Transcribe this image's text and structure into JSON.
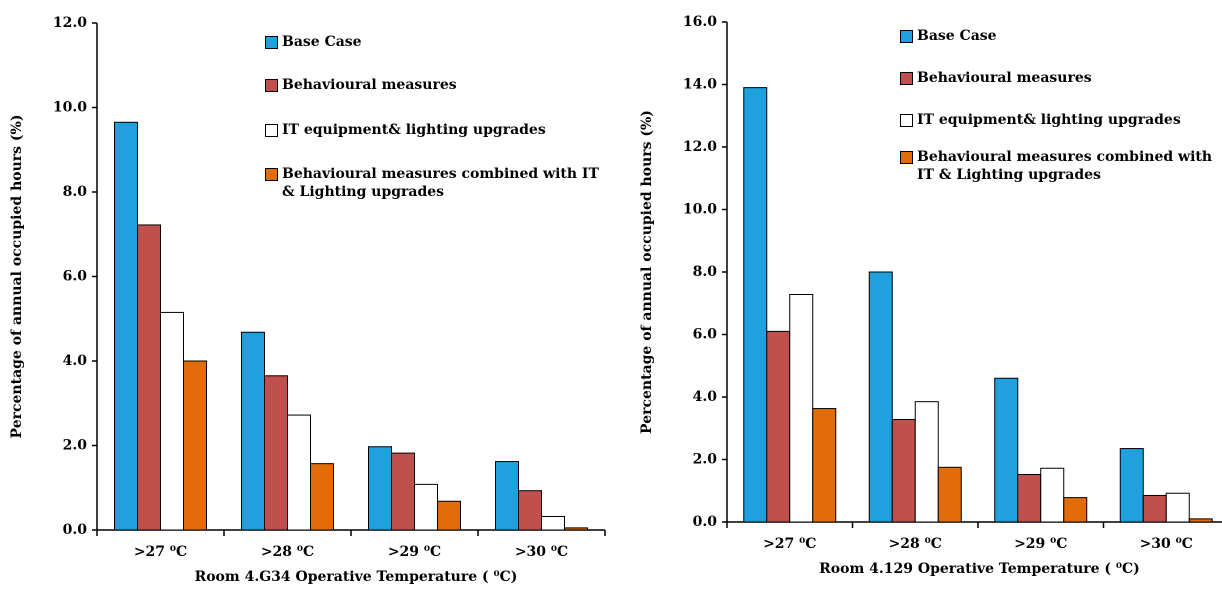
{
  "chart_data": [
    {
      "type": "bar",
      "x_label": "Room 4.G34 Operative Temperature ( ⁰C)",
      "y_label": "Percentage of annual occupied hours (%)",
      "categories": [
        ">27 ⁰C",
        ">28 ⁰C",
        ">29 ⁰C",
        ">30 ⁰C"
      ],
      "series": [
        {
          "name": "Base Case",
          "color": "#1ea1dc",
          "values": [
            9.65,
            4.68,
            1.97,
            1.62
          ]
        },
        {
          "name": "Behavioural measures",
          "color": "#c0504d",
          "values": [
            7.22,
            3.65,
            1.82,
            0.93
          ]
        },
        {
          "name": "IT equipment& lighting upgrades",
          "color": "#ffffff",
          "values": [
            5.15,
            2.72,
            1.08,
            0.32
          ]
        },
        {
          "name": "Behavioural measures combined with IT & Lighting upgrades",
          "color": "#e36c0a",
          "values": [
            4.0,
            1.57,
            0.68,
            0.05
          ]
        }
      ],
      "ylim": [
        0,
        12
      ],
      "yticks": [
        {
          "value": 0,
          "label": "0.0"
        },
        {
          "value": 2,
          "label": "2.0"
        },
        {
          "value": 4,
          "label": "4.0"
        },
        {
          "value": 6,
          "label": "6.0"
        },
        {
          "value": 8,
          "label": "8.0"
        },
        {
          "value": 10,
          "label": "10.0"
        },
        {
          "value": 12,
          "label": "12.0"
        }
      ]
    },
    {
      "type": "bar",
      "x_label": "Room 4.129 Operative Temperature ( ⁰C)",
      "y_label": "Percentage of annual occupied hours (%)",
      "categories": [
        ">27 ⁰C",
        ">28 ⁰C",
        ">29 ⁰C",
        ">30 ⁰C"
      ],
      "series": [
        {
          "name": "Base Case",
          "color": "#1ea1dc",
          "values": [
            13.9,
            8.0,
            4.6,
            2.35
          ]
        },
        {
          "name": "Behavioural measures",
          "color": "#c0504d",
          "values": [
            6.1,
            3.28,
            1.52,
            0.85
          ]
        },
        {
          "name": "IT equipment& lighting upgrades",
          "color": "#ffffff",
          "values": [
            7.28,
            3.85,
            1.72,
            0.92
          ]
        },
        {
          "name": "Behavioural measures combined with IT & Lighting upgrades",
          "color": "#e36c0a",
          "values": [
            3.63,
            1.75,
            0.78,
            0.1
          ]
        }
      ],
      "ylim": [
        0,
        16
      ],
      "yticks": [
        {
          "value": 0,
          "label": "0.0"
        },
        {
          "value": 2,
          "label": "2.0"
        },
        {
          "value": 4,
          "label": "4.0"
        },
        {
          "value": 6,
          "label": "6.0"
        },
        {
          "value": 8,
          "label": "8.0"
        },
        {
          "value": 10,
          "label": "10.0"
        },
        {
          "value": 12,
          "label": "12.0"
        },
        {
          "value": 14,
          "label": "14.0"
        },
        {
          "value": 16,
          "label": "16.0"
        }
      ]
    }
  ]
}
